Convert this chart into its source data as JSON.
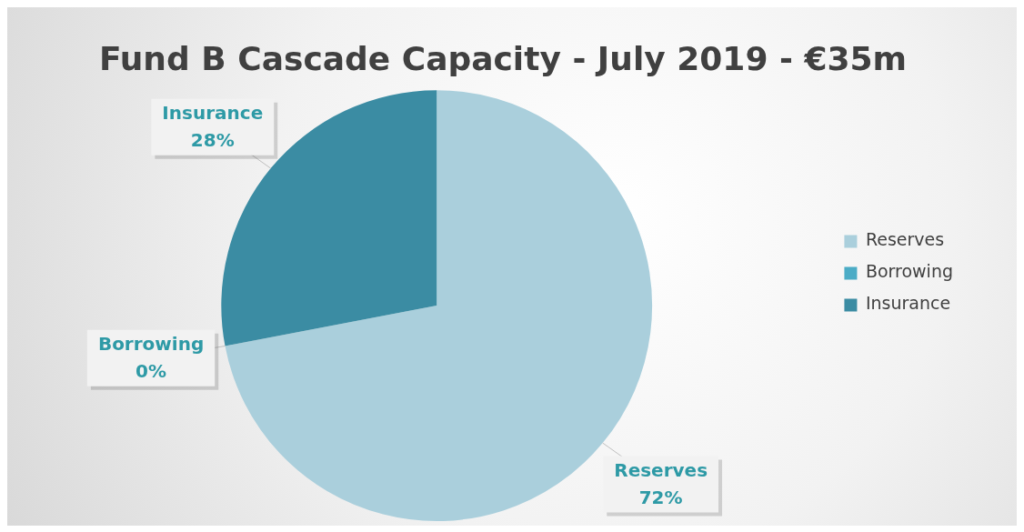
{
  "chart_data": {
    "type": "pie",
    "title": "Fund B Cascade Capacity - July 2019 - €35m",
    "categories": [
      "Reserves",
      "Borrowing",
      "Insurance"
    ],
    "values": [
      72,
      0,
      28
    ],
    "colors": [
      "#aacfdc",
      "#4bacc6",
      "#3b8ca3"
    ],
    "value_labels": [
      "72%",
      "0%",
      "28%"
    ],
    "legend": "right"
  }
}
